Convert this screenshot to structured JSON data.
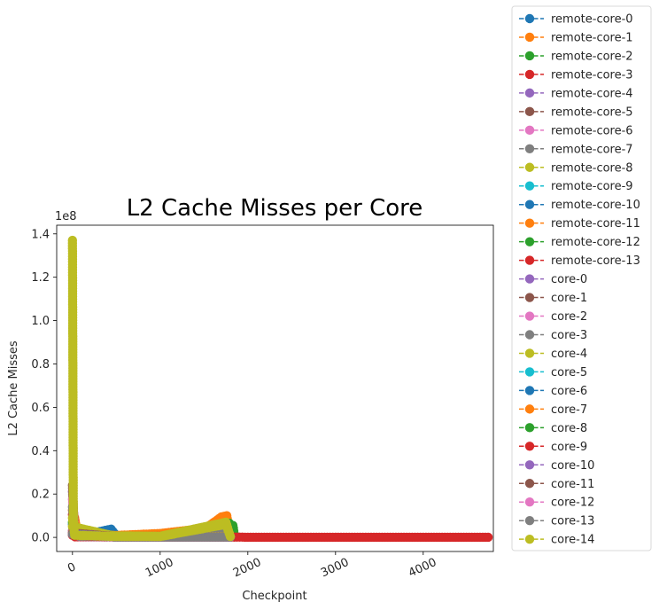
{
  "chart_data": {
    "type": "line",
    "title": "L2 Cache Misses per Core",
    "xlabel": "Checkpoint",
    "ylabel": "L2 Cache Misses",
    "y_offset_label": "1e8",
    "xlim": [
      -180,
      4800
    ],
    "ylim": [
      -6500000,
      144000000
    ],
    "xticks": [
      0,
      1000,
      2000,
      3000,
      4000
    ],
    "xtick_labels": [
      "0",
      "1000",
      "2000",
      "3000",
      "4000"
    ],
    "yticks": [
      0,
      20000000,
      40000000,
      60000000,
      80000000,
      100000000,
      120000000,
      140000000
    ],
    "ytick_labels": [
      "0.0",
      "0.2",
      "0.4",
      "0.6",
      "0.8",
      "1.0",
      "1.2",
      "1.4"
    ],
    "grid": false,
    "legend_position": "outside-right",
    "line_style": "dashed",
    "marker": "circle",
    "series": [
      {
        "name": "remote-core-0",
        "color": "#1f77b4",
        "points": [
          [
            0,
            6000000
          ],
          [
            25,
            1500000
          ],
          [
            60,
            600000
          ],
          [
            440,
            3800000
          ],
          [
            500,
            800000
          ],
          [
            1000,
            600000
          ],
          [
            1800,
            700000
          ],
          [
            1850,
            300000
          ]
        ]
      },
      {
        "name": "remote-core-1",
        "color": "#ff7f0e",
        "points": [
          [
            0,
            12500000
          ],
          [
            25,
            9000000
          ],
          [
            60,
            1500000
          ],
          [
            500,
            900000
          ],
          [
            1000,
            1800000
          ],
          [
            1360,
            3500000
          ],
          [
            1400,
            700000
          ],
          [
            1700,
            9500000
          ],
          [
            1760,
            10000000
          ],
          [
            1800,
            500000
          ]
        ]
      },
      {
        "name": "remote-core-2",
        "color": "#2ca02c",
        "points": [
          [
            0,
            7000000
          ],
          [
            30,
            2000000
          ],
          [
            100,
            500000
          ],
          [
            1000,
            500000
          ],
          [
            1790,
            6500000
          ],
          [
            1830,
            5500000
          ],
          [
            1850,
            300000
          ]
        ]
      },
      {
        "name": "remote-core-3",
        "color": "#d62728",
        "points": [
          [
            0,
            10500000
          ],
          [
            30,
            300000
          ],
          [
            1000,
            200000
          ],
          [
            2000,
            100000
          ],
          [
            3000,
            100000
          ],
          [
            4000,
            100000
          ],
          [
            4740,
            100000
          ]
        ]
      },
      {
        "name": "remote-core-4",
        "color": "#9467bd",
        "points": [
          [
            0,
            21000000
          ],
          [
            20,
            3000000
          ],
          [
            80,
            400000
          ],
          [
            1000,
            300000
          ],
          [
            1800,
            300000
          ]
        ]
      },
      {
        "name": "remote-core-5",
        "color": "#8c564b",
        "points": [
          [
            0,
            24000000
          ],
          [
            20,
            4000000
          ],
          [
            80,
            600000
          ],
          [
            1000,
            400000
          ],
          [
            1800,
            400000
          ]
        ]
      },
      {
        "name": "remote-core-6",
        "color": "#e377c2",
        "points": [
          [
            0,
            17500000
          ],
          [
            20,
            3500000
          ],
          [
            80,
            500000
          ],
          [
            1000,
            400000
          ],
          [
            1800,
            400000
          ]
        ]
      },
      {
        "name": "remote-core-7",
        "color": "#7f7f7f",
        "points": [
          [
            0,
            14000000
          ],
          [
            20,
            2500000
          ],
          [
            80,
            500000
          ],
          [
            1000,
            300000
          ],
          [
            1700,
            2500000
          ],
          [
            1800,
            300000
          ]
        ]
      },
      {
        "name": "remote-core-8",
        "color": "#bcbd22",
        "points": [
          [
            0,
            137000000
          ],
          [
            10,
            8000000
          ],
          [
            40,
            900000
          ],
          [
            1000,
            500000
          ],
          [
            1750,
            7000000
          ],
          [
            1800,
            400000
          ]
        ]
      },
      {
        "name": "remote-core-9",
        "color": "#17becf",
        "points": [
          [
            0,
            1500000
          ],
          [
            500,
            200000
          ],
          [
            1000,
            200000
          ],
          [
            1800,
            200000
          ]
        ]
      },
      {
        "name": "remote-core-10",
        "color": "#1f77b4",
        "points": [
          [
            0,
            1200000
          ],
          [
            500,
            200000
          ],
          [
            1000,
            200000
          ],
          [
            1800,
            200000
          ]
        ]
      },
      {
        "name": "remote-core-11",
        "color": "#ff7f0e",
        "points": [
          [
            0,
            1500000
          ],
          [
            500,
            300000
          ],
          [
            1000,
            300000
          ],
          [
            1800,
            300000
          ]
        ]
      },
      {
        "name": "remote-core-12",
        "color": "#2ca02c",
        "points": [
          [
            0,
            1300000
          ],
          [
            500,
            200000
          ],
          [
            1000,
            200000
          ],
          [
            1800,
            200000
          ]
        ]
      },
      {
        "name": "remote-core-13",
        "color": "#d62728",
        "points": [
          [
            0,
            1000000
          ],
          [
            500,
            200000
          ],
          [
            1000,
            200000
          ],
          [
            1800,
            200000
          ]
        ]
      },
      {
        "name": "core-0",
        "color": "#9467bd",
        "points": [
          [
            0,
            2000000
          ],
          [
            500,
            300000
          ],
          [
            1000,
            300000
          ],
          [
            1800,
            300000
          ]
        ]
      },
      {
        "name": "core-1",
        "color": "#8c564b",
        "points": [
          [
            0,
            3000000
          ],
          [
            500,
            400000
          ],
          [
            1000,
            400000
          ],
          [
            1800,
            400000
          ]
        ]
      },
      {
        "name": "core-2",
        "color": "#e377c2",
        "points": [
          [
            0,
            2500000
          ],
          [
            500,
            300000
          ],
          [
            1000,
            300000
          ],
          [
            1800,
            300000
          ]
        ]
      },
      {
        "name": "core-3",
        "color": "#7f7f7f",
        "points": [
          [
            0,
            2000000
          ],
          [
            500,
            300000
          ],
          [
            1000,
            300000
          ],
          [
            1800,
            300000
          ]
        ]
      },
      {
        "name": "core-4",
        "color": "#bcbd22",
        "points": [
          [
            0,
            5000000
          ],
          [
            500,
            400000
          ],
          [
            1000,
            400000
          ],
          [
            1800,
            400000
          ]
        ]
      },
      {
        "name": "core-5",
        "color": "#17becf",
        "points": [
          [
            0,
            1500000
          ],
          [
            500,
            200000
          ],
          [
            1000,
            200000
          ],
          [
            1800,
            200000
          ]
        ]
      },
      {
        "name": "core-6",
        "color": "#1f77b4",
        "points": [
          [
            0,
            1500000
          ],
          [
            500,
            200000
          ],
          [
            1000,
            200000
          ],
          [
            1800,
            200000
          ]
        ]
      },
      {
        "name": "core-7",
        "color": "#ff7f0e",
        "points": [
          [
            0,
            2000000
          ],
          [
            500,
            300000
          ],
          [
            1000,
            300000
          ],
          [
            1800,
            300000
          ]
        ]
      },
      {
        "name": "core-8",
        "color": "#2ca02c",
        "points": [
          [
            0,
            1500000
          ],
          [
            500,
            200000
          ],
          [
            1000,
            200000
          ],
          [
            1800,
            200000
          ]
        ]
      },
      {
        "name": "core-9",
        "color": "#d62728",
        "points": [
          [
            0,
            1500000
          ],
          [
            500,
            200000
          ],
          [
            1000,
            200000
          ],
          [
            1800,
            200000
          ]
        ]
      },
      {
        "name": "core-10",
        "color": "#9467bd",
        "points": [
          [
            0,
            1500000
          ],
          [
            500,
            200000
          ],
          [
            1000,
            200000
          ],
          [
            1800,
            200000
          ]
        ]
      },
      {
        "name": "core-11",
        "color": "#8c564b",
        "points": [
          [
            0,
            2000000
          ],
          [
            500,
            300000
          ],
          [
            1000,
            300000
          ],
          [
            1800,
            300000
          ]
        ]
      },
      {
        "name": "core-12",
        "color": "#e377c2",
        "points": [
          [
            0,
            1500000
          ],
          [
            500,
            200000
          ],
          [
            1000,
            200000
          ],
          [
            1800,
            200000
          ]
        ]
      },
      {
        "name": "core-13",
        "color": "#7f7f7f",
        "points": [
          [
            0,
            1500000
          ],
          [
            500,
            200000
          ],
          [
            1000,
            200000
          ],
          [
            1800,
            200000
          ]
        ]
      },
      {
        "name": "core-14",
        "color": "#bcbd22",
        "points": [
          [
            0,
            9000000
          ],
          [
            25,
            1000000
          ],
          [
            500,
            400000
          ],
          [
            1000,
            400000
          ],
          [
            1750,
            6000000
          ],
          [
            1800,
            400000
          ]
        ]
      }
    ]
  }
}
